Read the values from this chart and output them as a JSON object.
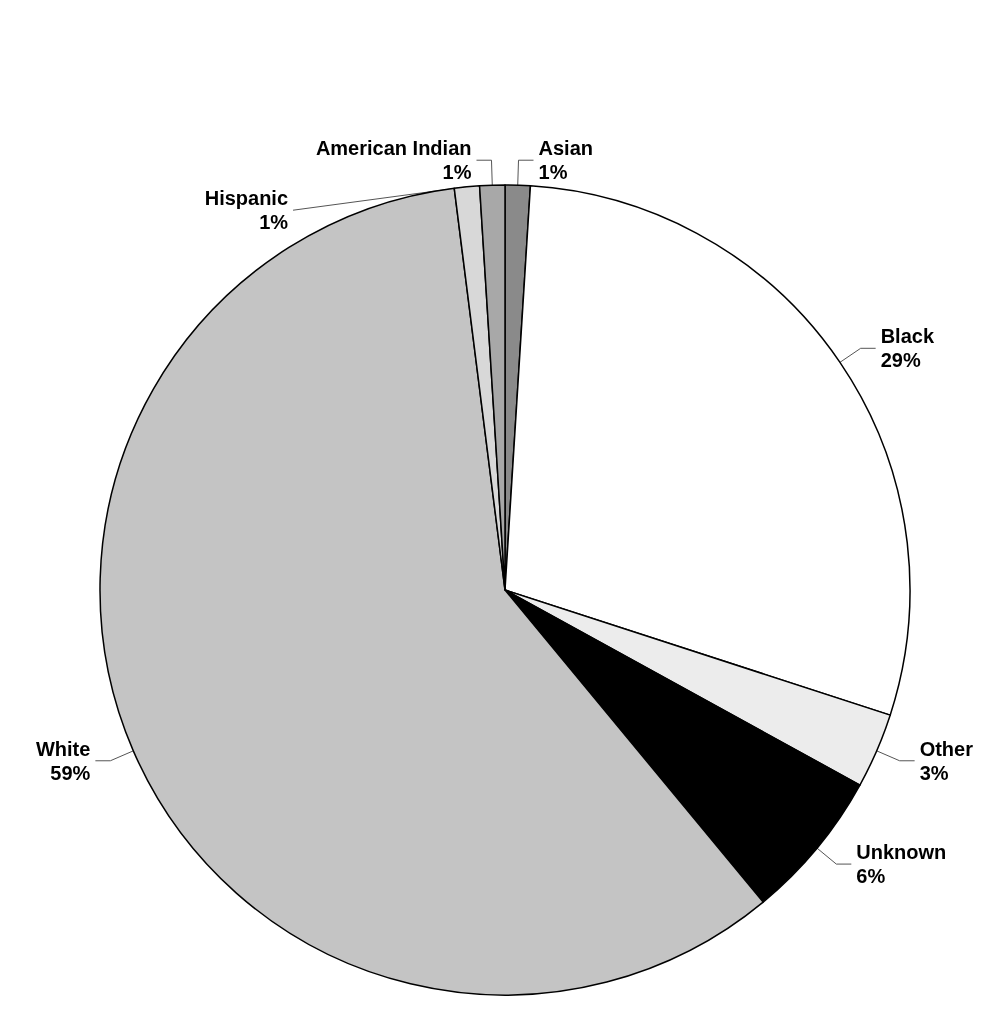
{
  "chart_data": {
    "type": "pie",
    "categories": [
      "Asian",
      "Black",
      "Other",
      "Unknown",
      "White",
      "Hispanic",
      "American Indian"
    ],
    "values": [
      1,
      29,
      3,
      6,
      59,
      1,
      1
    ],
    "value_labels": [
      "1%",
      "29%",
      "3%",
      "6%",
      "59%",
      "1%",
      "1%"
    ],
    "colors": [
      "#8a8a8a",
      "#ffffff",
      "#ececec",
      "#000000",
      "#c4c4c4",
      "#d8d8d8",
      "#a8a8a8"
    ],
    "legend": false
  }
}
